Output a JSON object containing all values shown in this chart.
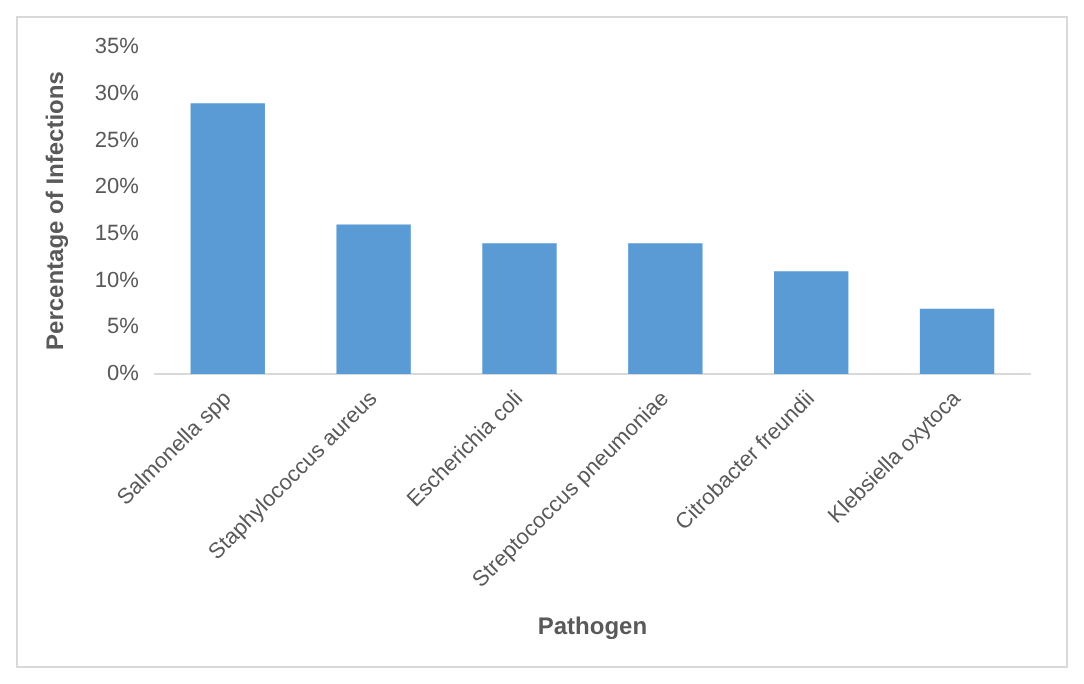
{
  "chart_data": {
    "type": "bar",
    "xlabel": "Pathogen",
    "ylabel": "Percentage of Infections",
    "categories": [
      "Salmonella spp",
      "Staphylococcus aureus",
      "Escherichia coli",
      "Streptococcus pneumoniae",
      "Citrobacter freundii",
      "Klebsiella oxytoca"
    ],
    "values": [
      29,
      16,
      14,
      14,
      11,
      7
    ],
    "color": "#5b9bd5",
    "ylim": [
      0,
      35
    ],
    "yticks": [
      {
        "value": 0,
        "label": "0%"
      },
      {
        "value": 5,
        "label": "5%"
      },
      {
        "value": 10,
        "label": "10%"
      },
      {
        "value": 15,
        "label": "15%"
      },
      {
        "value": 20,
        "label": "20%"
      },
      {
        "value": 25,
        "label": "25%"
      },
      {
        "value": 30,
        "label": "30%"
      },
      {
        "value": 35,
        "label": "35%"
      }
    ],
    "grid": false,
    "legend": false
  }
}
